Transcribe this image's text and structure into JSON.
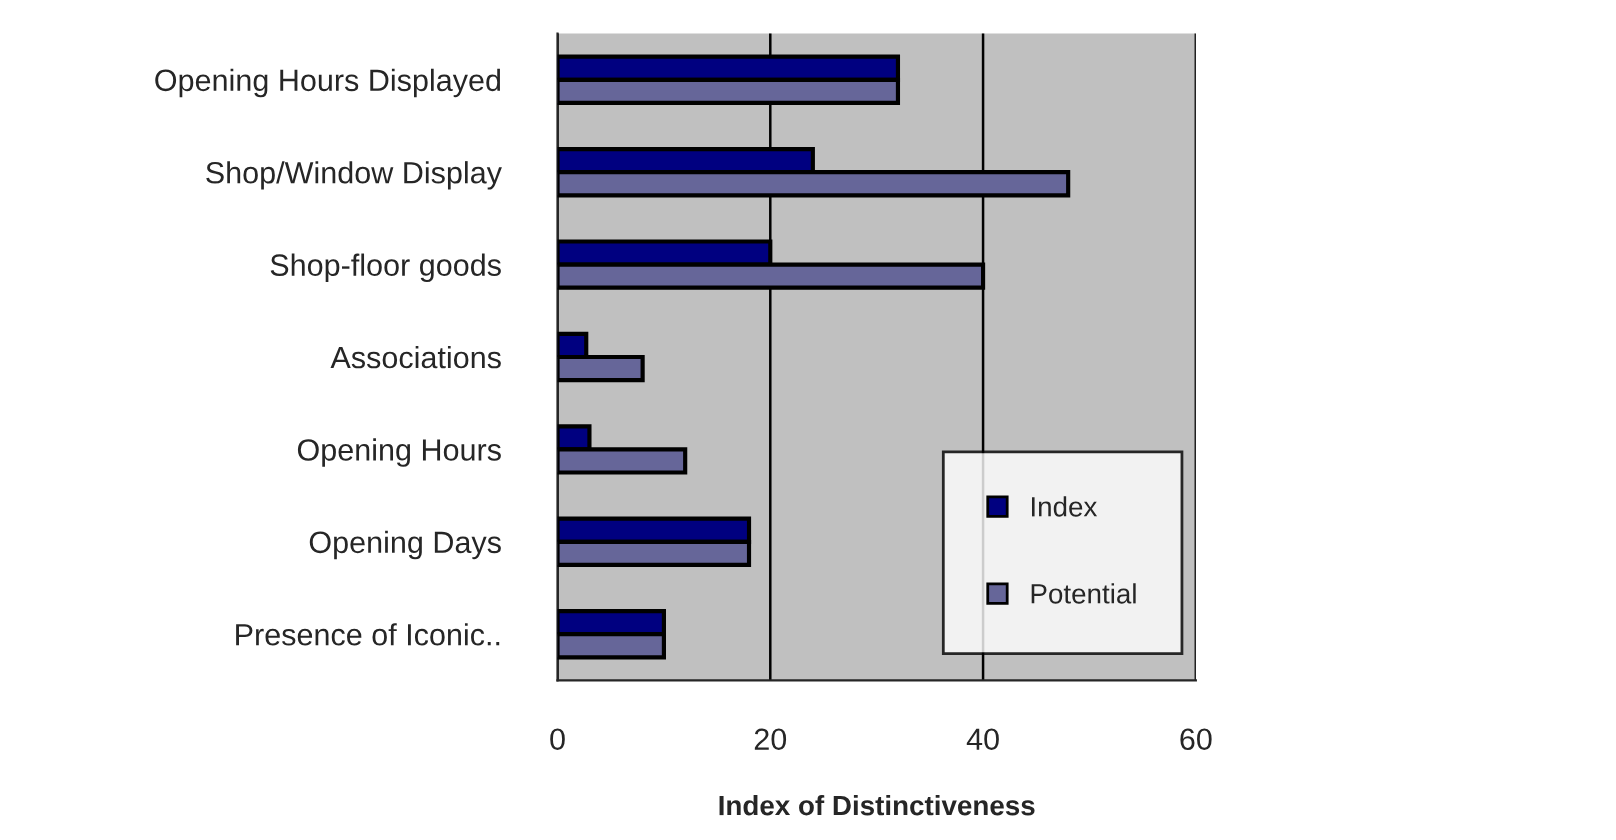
{
  "chart_data": {
    "type": "bar",
    "orientation": "horizontal",
    "xlabel": "Index of Distinctiveness",
    "categories": [
      "Opening Hours Displayed",
      "Shop/Window Display",
      "Shop-floor goods",
      "Associations",
      "Opening Hours",
      "Opening Days",
      "Presence of Iconic.."
    ],
    "series": [
      {
        "name": "Index",
        "color": "#000080",
        "values": [
          32,
          24,
          20,
          2.7,
          3,
          18,
          10
        ]
      },
      {
        "name": "Potential",
        "color": "#666699",
        "values": [
          32,
          48,
          40,
          8,
          12,
          18,
          10
        ]
      }
    ],
    "xlim": [
      0,
      60
    ],
    "xticks": [
      0,
      20,
      40,
      60
    ],
    "grid": "x",
    "legend": "bottom right"
  }
}
